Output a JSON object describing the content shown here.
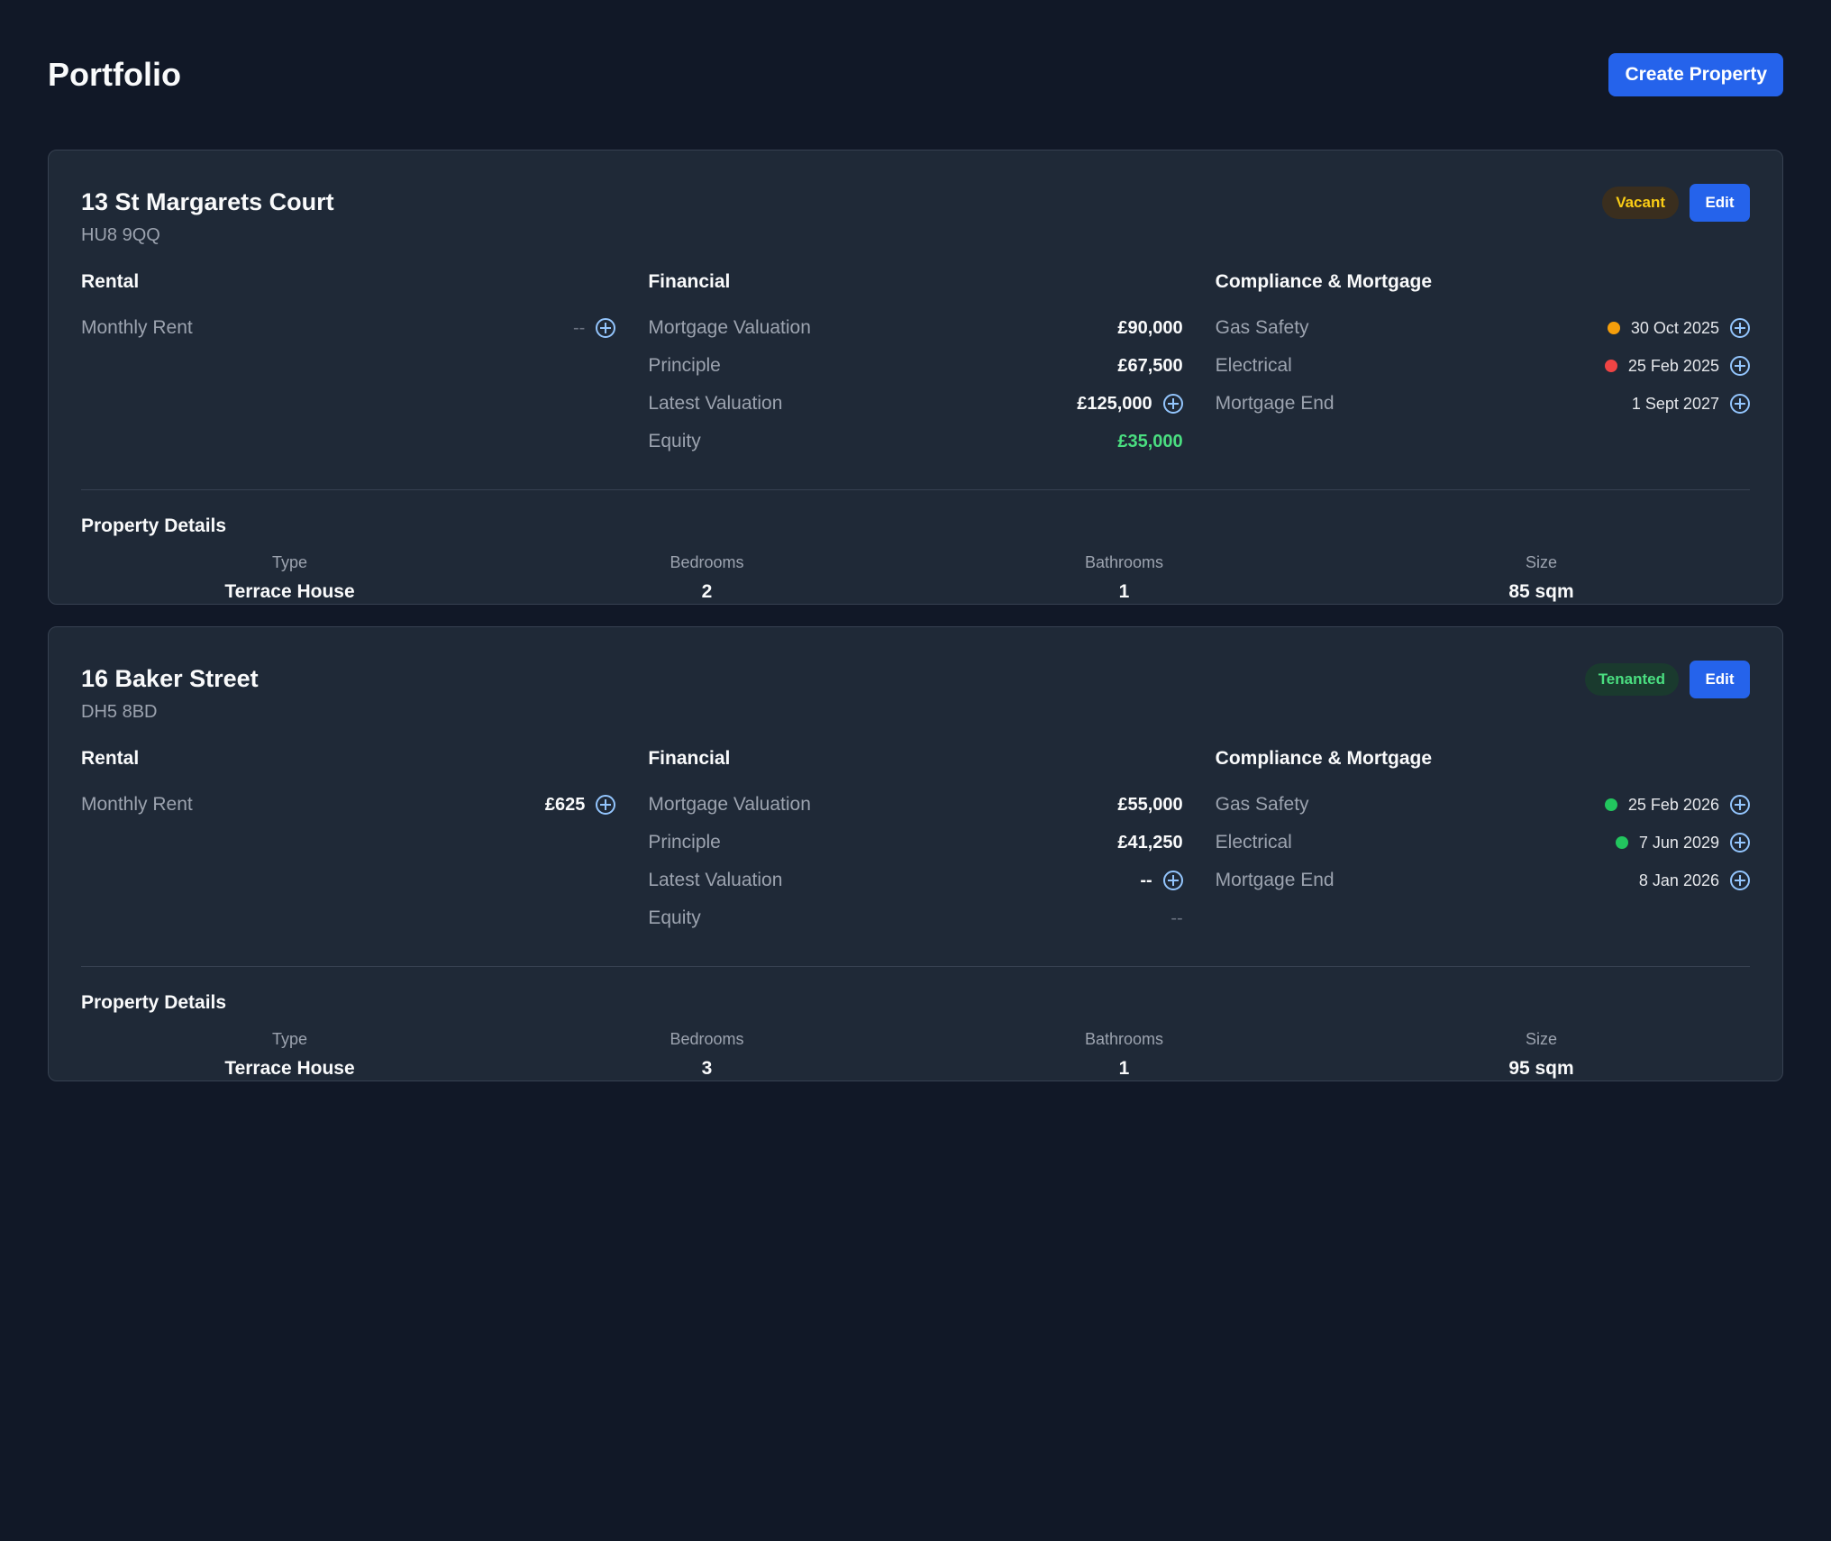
{
  "page": {
    "title": "Portfolio",
    "create_label": "Create Property"
  },
  "labels": {
    "rental": "Rental",
    "financial": "Financial",
    "compliance": "Compliance & Mortgage",
    "monthly_rent": "Monthly Rent",
    "mortgage_valuation": "Mortgage Valuation",
    "principle": "Principle",
    "latest_valuation": "Latest Valuation",
    "equity": "Equity",
    "gas_safety": "Gas Safety",
    "electrical": "Electrical",
    "mortgage_end": "Mortgage End",
    "property_details": "Property Details",
    "type": "Type",
    "bedrooms": "Bedrooms",
    "bathrooms": "Bathrooms",
    "size": "Size",
    "edit": "Edit"
  },
  "colors": {
    "accent": "#2563eb",
    "status_ok": "#22c55e",
    "status_warn": "#f59e0b",
    "status_overdue": "#ef4444",
    "equity_positive": "#4ade80"
  },
  "properties": [
    {
      "name": "13 St Margarets Court",
      "postcode": "HU8 9QQ",
      "status": "Vacant",
      "monthly_rent": "--",
      "mortgage_valuation": "£90,000",
      "principle": "£67,500",
      "latest_valuation": "£125,000",
      "equity": "£35,000",
      "gas_safety": "30 Oct 2025",
      "gas_safety_status": "warning",
      "electrical": "25 Feb 2025",
      "electrical_status": "overdue",
      "mortgage_end": "1 Sept 2027",
      "type": "Terrace House",
      "bedrooms": "2",
      "bathrooms": "1",
      "size": "85 sqm"
    },
    {
      "name": "16 Baker Street",
      "postcode": "DH5 8BD",
      "status": "Tenanted",
      "monthly_rent": "£625",
      "mortgage_valuation": "£55,000",
      "principle": "£41,250",
      "latest_valuation": "--",
      "equity": "--",
      "gas_safety": "25 Feb 2026",
      "gas_safety_status": "ok",
      "electrical": "7 Jun 2029",
      "electrical_status": "ok",
      "mortgage_end": "8 Jan 2026",
      "type": "Terrace House",
      "bedrooms": "3",
      "bathrooms": "1",
      "size": "95 sqm"
    }
  ]
}
